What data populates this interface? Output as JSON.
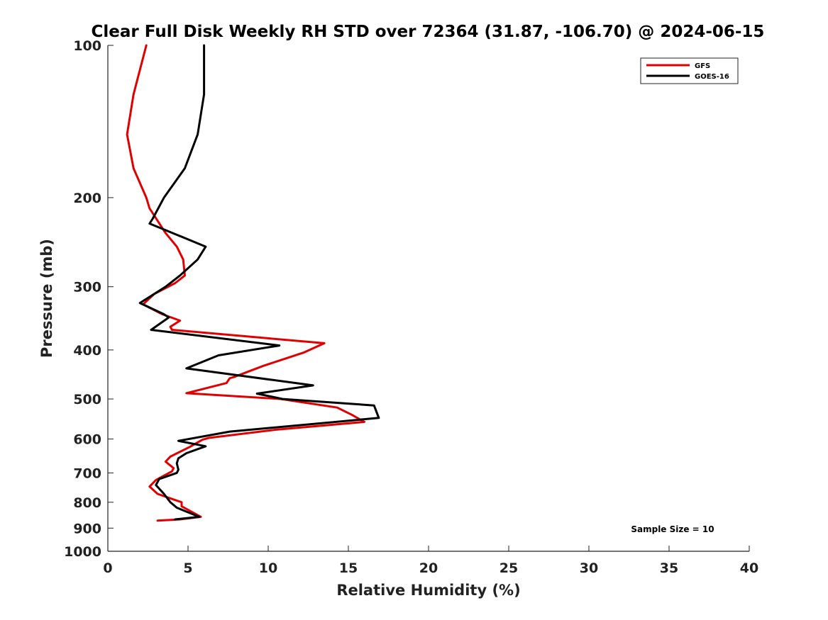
{
  "chart_data": {
    "type": "line",
    "title": "Clear Full Disk Weekly RH STD over 72364 (31.87, -106.70) @ 2024-06-15",
    "xlabel": "Relative Humidity (%)",
    "ylabel": "Pressure (mb)",
    "xlim": [
      0,
      40
    ],
    "ylim": [
      1000,
      100
    ],
    "y_scale": "log",
    "x_ticks": [
      0,
      5,
      10,
      15,
      20,
      25,
      30,
      35,
      40
    ],
    "y_ticks": [
      100,
      200,
      300,
      400,
      500,
      600,
      700,
      800,
      900,
      1000
    ],
    "grid": false,
    "legend_position": "top-right",
    "annotation": "Sample Size = 10",
    "series": [
      {
        "name": "GFS",
        "color": "#e00000",
        "points": [
          [
            2.4,
            100
          ],
          [
            1.6,
            125
          ],
          [
            1.2,
            150
          ],
          [
            1.6,
            175
          ],
          [
            2.4,
            200
          ],
          [
            2.6,
            210
          ],
          [
            3.6,
            235
          ],
          [
            4.3,
            250
          ],
          [
            4.7,
            265
          ],
          [
            4.8,
            285
          ],
          [
            4.2,
            295
          ],
          [
            2.9,
            310
          ],
          [
            2.2,
            325
          ],
          [
            3.4,
            340
          ],
          [
            4.5,
            350
          ],
          [
            3.9,
            360
          ],
          [
            4.0,
            365
          ],
          [
            13.5,
            388
          ],
          [
            12.2,
            405
          ],
          [
            9.7,
            430
          ],
          [
            7.9,
            452
          ],
          [
            7.6,
            455
          ],
          [
            7.4,
            465
          ],
          [
            4.9,
            487
          ],
          [
            10.8,
            500
          ],
          [
            14.3,
            520
          ],
          [
            15.2,
            537
          ],
          [
            16.0,
            555
          ],
          [
            10.5,
            575
          ],
          [
            6.3,
            597
          ],
          [
            5.9,
            602
          ],
          [
            5.1,
            622
          ],
          [
            3.9,
            650
          ],
          [
            3.6,
            665
          ],
          [
            4.1,
            685
          ],
          [
            4.0,
            695
          ],
          [
            3.0,
            723
          ],
          [
            2.6,
            745
          ],
          [
            3.1,
            770
          ],
          [
            4.1,
            790
          ],
          [
            4.6,
            800
          ],
          [
            4.6,
            815
          ],
          [
            5.8,
            855
          ],
          [
            4.5,
            865
          ],
          [
            3.1,
            870
          ]
        ]
      },
      {
        "name": "GOES-16",
        "color": "#000000",
        "points": [
          [
            6.0,
            100
          ],
          [
            6.0,
            125
          ],
          [
            5.6,
            150
          ],
          [
            4.8,
            175
          ],
          [
            3.5,
            200
          ],
          [
            2.8,
            220
          ],
          [
            2.6,
            225
          ],
          [
            6.1,
            250
          ],
          [
            5.6,
            265
          ],
          [
            4.5,
            285
          ],
          [
            3.6,
            300
          ],
          [
            2.0,
            323
          ],
          [
            3.5,
            340
          ],
          [
            3.8,
            345
          ],
          [
            2.7,
            365
          ],
          [
            10.7,
            392
          ],
          [
            6.9,
            410
          ],
          [
            4.9,
            435
          ],
          [
            12.8,
            470
          ],
          [
            9.3,
            488
          ],
          [
            10.9,
            500
          ],
          [
            16.6,
            515
          ],
          [
            16.9,
            545
          ],
          [
            7.6,
            580
          ],
          [
            4.4,
            605
          ],
          [
            6.1,
            620
          ],
          [
            4.9,
            640
          ],
          [
            4.4,
            655
          ],
          [
            4.3,
            670
          ],
          [
            4.4,
            690
          ],
          [
            4.3,
            700
          ],
          [
            3.2,
            720
          ],
          [
            3.0,
            740
          ],
          [
            3.5,
            770
          ],
          [
            3.9,
            800
          ],
          [
            4.3,
            820
          ],
          [
            5.7,
            855
          ],
          [
            4.2,
            865
          ]
        ]
      }
    ]
  }
}
